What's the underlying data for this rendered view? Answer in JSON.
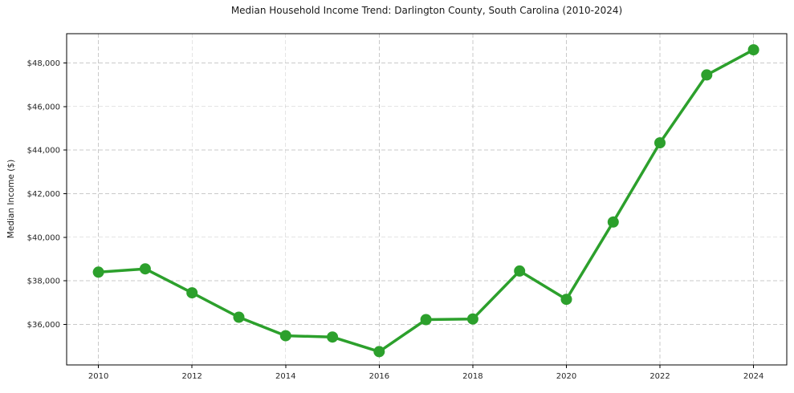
{
  "chart_data": {
    "type": "line",
    "title": "Median Household Income Trend: Darlington County, South Carolina (2010-2024)",
    "xlabel": "",
    "ylabel": "Median Income ($)",
    "series": [
      {
        "name": "Median Household Income",
        "x": [
          2010,
          2011,
          2012,
          2013,
          2014,
          2015,
          2016,
          2017,
          2018,
          2019,
          2020,
          2021,
          2022,
          2023,
          2024
        ],
        "values": [
          38400,
          38550,
          37450,
          36330,
          35480,
          35420,
          34750,
          36220,
          36250,
          38450,
          37150,
          40700,
          44330,
          47450,
          48600
        ]
      }
    ],
    "x_ticks": {
      "values": [
        2010,
        2012,
        2014,
        2016,
        2018,
        2020,
        2022,
        2024
      ],
      "labels": [
        "2010",
        "2012",
        "2014",
        "2016",
        "2018",
        "2020",
        "2022",
        "2024"
      ]
    },
    "y_ticks": {
      "values": [
        36000,
        38000,
        40000,
        42000,
        44000,
        46000,
        48000
      ],
      "labels": [
        "$36,000",
        "$38,000",
        "$40,000",
        "$42,000",
        "$44,000",
        "$46,000",
        "$48,000"
      ]
    },
    "xlim": [
      2009.32,
      2024.71
    ],
    "ylim": [
      34140,
      49340
    ],
    "grid": "both",
    "grid_style": "dashed",
    "legend_position": "none",
    "colors": {
      "line": "#2ca02c",
      "marker": "#2ca02c",
      "grid": "#c9c9c9",
      "spine": "#000000",
      "tick_text": "#262626",
      "background": "#ffffff"
    }
  }
}
